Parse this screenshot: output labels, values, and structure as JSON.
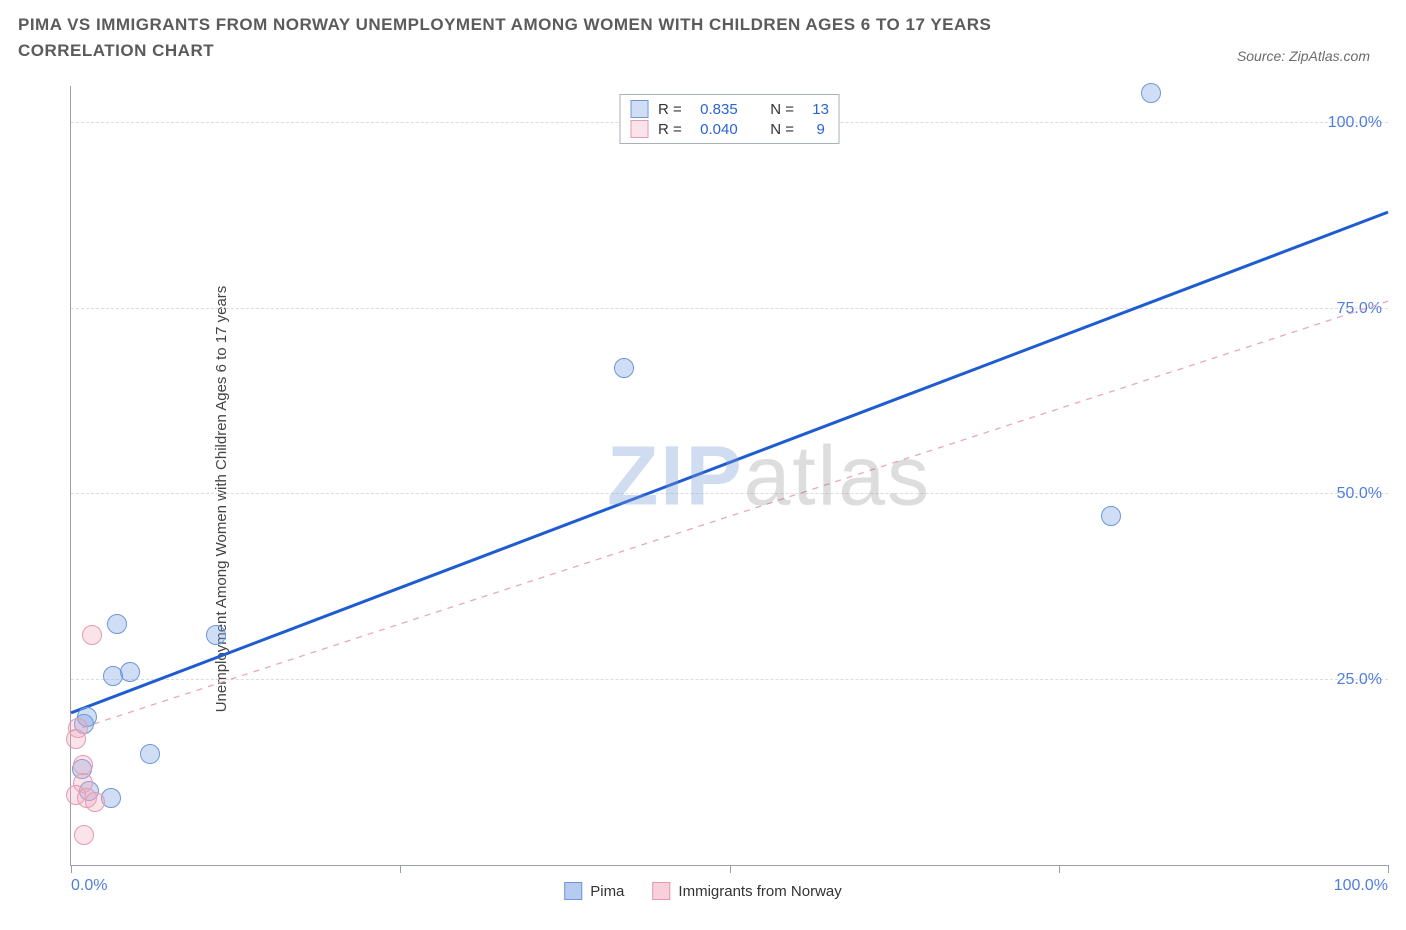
{
  "title": "PIMA VS IMMIGRANTS FROM NORWAY UNEMPLOYMENT AMONG WOMEN WITH CHILDREN AGES 6 TO 17 YEARS CORRELATION CHART",
  "source_label": "Source: ZipAtlas.com",
  "y_axis_label": "Unemployment Among Women with Children Ages 6 to 17 years",
  "watermark": {
    "a": "ZIP",
    "b": "atlas"
  },
  "chart": {
    "type": "scatter",
    "xlim": [
      0,
      100
    ],
    "ylim": [
      0,
      105
    ],
    "background_color": "#ffffff",
    "grid_color": "#d8dde3",
    "axis_color": "#9aa0a6",
    "y_ticks": [
      {
        "v": 25,
        "label": "25.0%"
      },
      {
        "v": 50,
        "label": "50.0%"
      },
      {
        "v": 75,
        "label": "75.0%"
      },
      {
        "v": 100,
        "label": "100.0%"
      }
    ],
    "x_ticks": [
      {
        "v": 0,
        "label": "0.0%",
        "align": "left"
      },
      {
        "v": 25,
        "label": "",
        "align": "center"
      },
      {
        "v": 50,
        "label": "",
        "align": "center"
      },
      {
        "v": 75,
        "label": "",
        "align": "center"
      },
      {
        "v": 100,
        "label": "100.0%",
        "align": "right"
      }
    ],
    "series": [
      {
        "name": "Pima",
        "marker_fill": "rgba(120,160,225,0.35)",
        "marker_stroke": "#6f97d8",
        "marker_radius": 10,
        "trend": {
          "x1": 0,
          "y1": 20.5,
          "x2": 100,
          "y2": 88,
          "stroke": "#1f5ccf",
          "width": 3,
          "dash": "none"
        },
        "stats": {
          "R": "0.835",
          "N": "13"
        },
        "points": [
          {
            "x": 82,
            "y": 104
          },
          {
            "x": 79,
            "y": 47
          },
          {
            "x": 42,
            "y": 67
          },
          {
            "x": 11,
            "y": 31
          },
          {
            "x": 3.5,
            "y": 32.5
          },
          {
            "x": 4.5,
            "y": 26
          },
          {
            "x": 3.2,
            "y": 25.5
          },
          {
            "x": 6,
            "y": 15
          },
          {
            "x": 1.2,
            "y": 20
          },
          {
            "x": 1.0,
            "y": 19
          },
          {
            "x": 0.8,
            "y": 13
          },
          {
            "x": 1.4,
            "y": 10
          },
          {
            "x": 3.0,
            "y": 9
          }
        ]
      },
      {
        "name": "Immigrants from Norway",
        "marker_fill": "rgba(240,170,190,0.32)",
        "marker_stroke": "#e49ab2",
        "marker_radius": 10,
        "trend": {
          "x1": 0,
          "y1": 18,
          "x2": 100,
          "y2": 76,
          "stroke": "#e9a8ba",
          "width": 1.3,
          "dash": "6,6"
        },
        "stats": {
          "R": "0.040",
          "N": "9"
        },
        "points": [
          {
            "x": 1.6,
            "y": 31
          },
          {
            "x": 0.5,
            "y": 18.5
          },
          {
            "x": 0.4,
            "y": 17
          },
          {
            "x": 0.9,
            "y": 13.5
          },
          {
            "x": 0.9,
            "y": 11
          },
          {
            "x": 0.4,
            "y": 9.5
          },
          {
            "x": 1.2,
            "y": 9
          },
          {
            "x": 1.8,
            "y": 8.5
          },
          {
            "x": 1.0,
            "y": 4
          }
        ]
      }
    ],
    "legend_bottom": [
      {
        "label": "Pima",
        "fill": "rgba(120,160,225,0.55)",
        "stroke": "#6f97d8"
      },
      {
        "label": "Immigrants from Norway",
        "fill": "rgba(240,170,190,0.55)",
        "stroke": "#e49ab2"
      }
    ],
    "legend_top_label_R": "R =",
    "legend_top_label_N": "N ="
  }
}
